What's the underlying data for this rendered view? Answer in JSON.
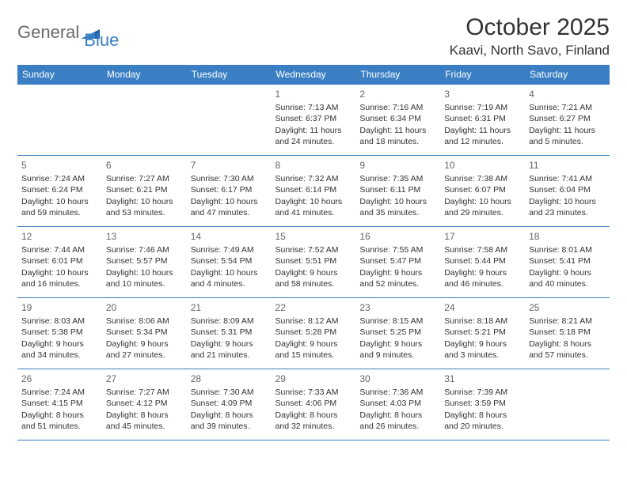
{
  "logo": {
    "word1": "General",
    "word2": "Blue"
  },
  "title": "October 2025",
  "location": "Kaavi, North Savo, Finland",
  "colors": {
    "header_bg": "#3a7fc4",
    "header_text": "#ffffff",
    "cell_border": "#3a7fc4",
    "text": "#333333",
    "daynum": "#666666",
    "logo_gray": "#6b6b6b",
    "logo_blue": "#3a7fc4",
    "background": "#ffffff"
  },
  "dayHeaders": [
    "Sunday",
    "Monday",
    "Tuesday",
    "Wednesday",
    "Thursday",
    "Friday",
    "Saturday"
  ],
  "weeks": [
    [
      null,
      null,
      null,
      {
        "n": "1",
        "sunrise": "7:13 AM",
        "sunset": "6:37 PM",
        "daylight": "11 hours and 24 minutes."
      },
      {
        "n": "2",
        "sunrise": "7:16 AM",
        "sunset": "6:34 PM",
        "daylight": "11 hours and 18 minutes."
      },
      {
        "n": "3",
        "sunrise": "7:19 AM",
        "sunset": "6:31 PM",
        "daylight": "11 hours and 12 minutes."
      },
      {
        "n": "4",
        "sunrise": "7:21 AM",
        "sunset": "6:27 PM",
        "daylight": "11 hours and 5 minutes."
      }
    ],
    [
      {
        "n": "5",
        "sunrise": "7:24 AM",
        "sunset": "6:24 PM",
        "daylight": "10 hours and 59 minutes."
      },
      {
        "n": "6",
        "sunrise": "7:27 AM",
        "sunset": "6:21 PM",
        "daylight": "10 hours and 53 minutes."
      },
      {
        "n": "7",
        "sunrise": "7:30 AM",
        "sunset": "6:17 PM",
        "daylight": "10 hours and 47 minutes."
      },
      {
        "n": "8",
        "sunrise": "7:32 AM",
        "sunset": "6:14 PM",
        "daylight": "10 hours and 41 minutes."
      },
      {
        "n": "9",
        "sunrise": "7:35 AM",
        "sunset": "6:11 PM",
        "daylight": "10 hours and 35 minutes."
      },
      {
        "n": "10",
        "sunrise": "7:38 AM",
        "sunset": "6:07 PM",
        "daylight": "10 hours and 29 minutes."
      },
      {
        "n": "11",
        "sunrise": "7:41 AM",
        "sunset": "6:04 PM",
        "daylight": "10 hours and 23 minutes."
      }
    ],
    [
      {
        "n": "12",
        "sunrise": "7:44 AM",
        "sunset": "6:01 PM",
        "daylight": "10 hours and 16 minutes."
      },
      {
        "n": "13",
        "sunrise": "7:46 AM",
        "sunset": "5:57 PM",
        "daylight": "10 hours and 10 minutes."
      },
      {
        "n": "14",
        "sunrise": "7:49 AM",
        "sunset": "5:54 PM",
        "daylight": "10 hours and 4 minutes."
      },
      {
        "n": "15",
        "sunrise": "7:52 AM",
        "sunset": "5:51 PM",
        "daylight": "9 hours and 58 minutes."
      },
      {
        "n": "16",
        "sunrise": "7:55 AM",
        "sunset": "5:47 PM",
        "daylight": "9 hours and 52 minutes."
      },
      {
        "n": "17",
        "sunrise": "7:58 AM",
        "sunset": "5:44 PM",
        "daylight": "9 hours and 46 minutes."
      },
      {
        "n": "18",
        "sunrise": "8:01 AM",
        "sunset": "5:41 PM",
        "daylight": "9 hours and 40 minutes."
      }
    ],
    [
      {
        "n": "19",
        "sunrise": "8:03 AM",
        "sunset": "5:38 PM",
        "daylight": "9 hours and 34 minutes."
      },
      {
        "n": "20",
        "sunrise": "8:06 AM",
        "sunset": "5:34 PM",
        "daylight": "9 hours and 27 minutes."
      },
      {
        "n": "21",
        "sunrise": "8:09 AM",
        "sunset": "5:31 PM",
        "daylight": "9 hours and 21 minutes."
      },
      {
        "n": "22",
        "sunrise": "8:12 AM",
        "sunset": "5:28 PM",
        "daylight": "9 hours and 15 minutes."
      },
      {
        "n": "23",
        "sunrise": "8:15 AM",
        "sunset": "5:25 PM",
        "daylight": "9 hours and 9 minutes."
      },
      {
        "n": "24",
        "sunrise": "8:18 AM",
        "sunset": "5:21 PM",
        "daylight": "9 hours and 3 minutes."
      },
      {
        "n": "25",
        "sunrise": "8:21 AM",
        "sunset": "5:18 PM",
        "daylight": "8 hours and 57 minutes."
      }
    ],
    [
      {
        "n": "26",
        "sunrise": "7:24 AM",
        "sunset": "4:15 PM",
        "daylight": "8 hours and 51 minutes."
      },
      {
        "n": "27",
        "sunrise": "7:27 AM",
        "sunset": "4:12 PM",
        "daylight": "8 hours and 45 minutes."
      },
      {
        "n": "28",
        "sunrise": "7:30 AM",
        "sunset": "4:09 PM",
        "daylight": "8 hours and 39 minutes."
      },
      {
        "n": "29",
        "sunrise": "7:33 AM",
        "sunset": "4:06 PM",
        "daylight": "8 hours and 32 minutes."
      },
      {
        "n": "30",
        "sunrise": "7:36 AM",
        "sunset": "4:03 PM",
        "daylight": "8 hours and 26 minutes."
      },
      {
        "n": "31",
        "sunrise": "7:39 AM",
        "sunset": "3:59 PM",
        "daylight": "8 hours and 20 minutes."
      },
      null
    ]
  ],
  "labels": {
    "sunrise": "Sunrise:",
    "sunset": "Sunset:",
    "daylight": "Daylight:"
  }
}
